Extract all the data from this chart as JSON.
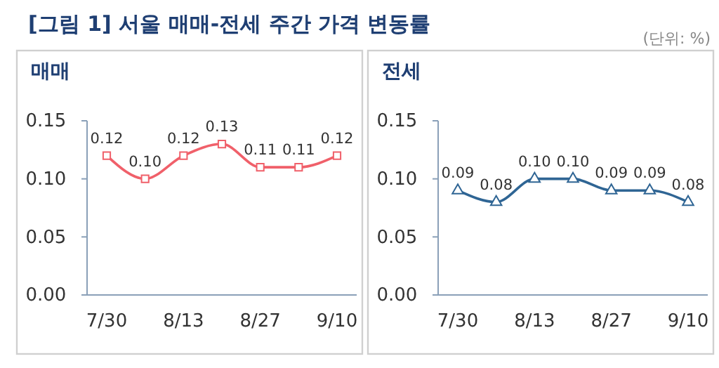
{
  "chart_data": [
    {
      "type": "line",
      "title": "매매",
      "annotations": [
        "[그림 1] 서울 매매-전세 주간 가격 변동률"
      ],
      "categories": [
        "7/30",
        null,
        "8/13",
        null,
        "8/27",
        null,
        "9/10"
      ],
      "series": [
        {
          "color": "#f0606a",
          "values": [
            0.12,
            0.1,
            0.12,
            0.13,
            0.11,
            0.11,
            0.12
          ],
          "value_labels": [
            "0.12",
            "0.10",
            "0.12",
            "0.13",
            "0.11",
            "0.11",
            "0.12"
          ]
        }
      ],
      "ylim": [
        0,
        0.15
      ],
      "yticks": [
        {
          "value": 0,
          "label": "0.00"
        },
        {
          "value": 0.05,
          "label": "0.05"
        },
        {
          "value": 0.1,
          "label": "0.10"
        },
        0.15
      ],
      "marker": "square",
      "line_style": "solid",
      "grid": false
    },
    {
      "type": "line",
      "title": "전세",
      "annotations": [
        "(단위: %)"
      ],
      "categories": [
        "7/30",
        null,
        "8/13",
        null,
        "8/27",
        null,
        "9/10"
      ],
      "series": [
        {
          "color": "#2f6594",
          "values": [
            0.09,
            0.08,
            0.1,
            0.1,
            0.09,
            0.09,
            0.08
          ],
          "value_labels": [
            "0.09",
            "0.08",
            "0.10",
            "0.10",
            "0.09",
            "0.09",
            "0.08"
          ]
        }
      ],
      "ylim": [
        0,
        0.15
      ],
      "yticks": [
        {
          "value": 0,
          "label": "0.00"
        },
        {
          "value": 0.05,
          "label": "0.05"
        },
        {
          "value": 0.1,
          "label": "0.10"
        },
        0.15
      ],
      "marker": "triangle",
      "line_style": "solid",
      "grid": false
    }
  ]
}
